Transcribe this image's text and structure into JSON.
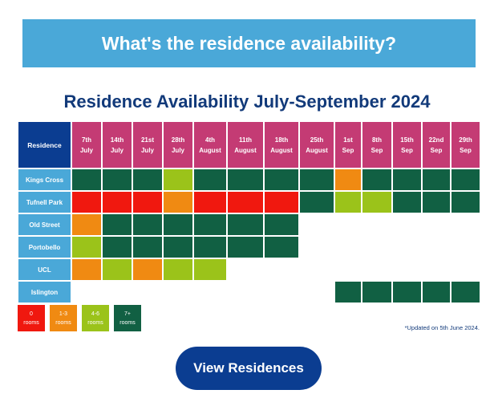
{
  "banner": {
    "text": "What's the residence availability?"
  },
  "title": "Residence Availability July-September 2024",
  "table": {
    "residence_header": "Residence",
    "dates": [
      "7th\nJuly",
      "14th\nJuly",
      "21st\nJuly",
      "28th\nJuly",
      "4th\nAugust",
      "11th\nAugust",
      "18th\nAugust",
      "25th\nAugust",
      "1st\nSep",
      "8th\nSep",
      "15th\nSep",
      "22nd\nSep",
      "29th\nSep"
    ],
    "rows": [
      {
        "name": "Kings Cross",
        "cells": [
          "dk",
          "dk",
          "dk",
          "lt",
          "dk",
          "dk",
          "dk",
          "dk",
          "or",
          "dk",
          "dk",
          "dk",
          "dk"
        ]
      },
      {
        "name": "Tufnell Park",
        "cells": [
          "rd",
          "rd",
          "rd",
          "or",
          "rd",
          "rd",
          "rd",
          "dk",
          "lt",
          "lt",
          "dk",
          "dk",
          "dk"
        ]
      },
      {
        "name": "Old Street",
        "cells": [
          "or",
          "dk",
          "dk",
          "dk",
          "dk",
          "dk",
          "dk",
          "em",
          "em",
          "em",
          "em",
          "em",
          "em"
        ]
      },
      {
        "name": "Portobello",
        "cells": [
          "lt",
          "dk",
          "dk",
          "dk",
          "dk",
          "dk",
          "dk",
          "em",
          "em",
          "em",
          "em",
          "em",
          "em"
        ]
      },
      {
        "name": "UCL",
        "cells": [
          "or",
          "lt",
          "or",
          "lt",
          "lt",
          "em",
          "em",
          "em",
          "em",
          "em",
          "em",
          "em",
          "em"
        ]
      },
      {
        "name": "Islington",
        "cells": [
          "em",
          "em",
          "em",
          "em",
          "em",
          "em",
          "em",
          "em",
          "dk",
          "dk",
          "dk",
          "dk",
          "dk"
        ]
      }
    ]
  },
  "legend": [
    {
      "key": "rd",
      "label": "0\nrooms"
    },
    {
      "key": "or",
      "label": "1-3\nrooms"
    },
    {
      "key": "lt",
      "label": "4-6\nrooms"
    },
    {
      "key": "dk",
      "label": "7+\nrooms"
    }
  ],
  "colors": {
    "dk": "#116043",
    "lt": "#9bc31a",
    "or": "#f08a12",
    "rd": "#f0180f"
  },
  "note": "*Updated on 5th June 2024.",
  "cta": {
    "label": "View Residences"
  }
}
